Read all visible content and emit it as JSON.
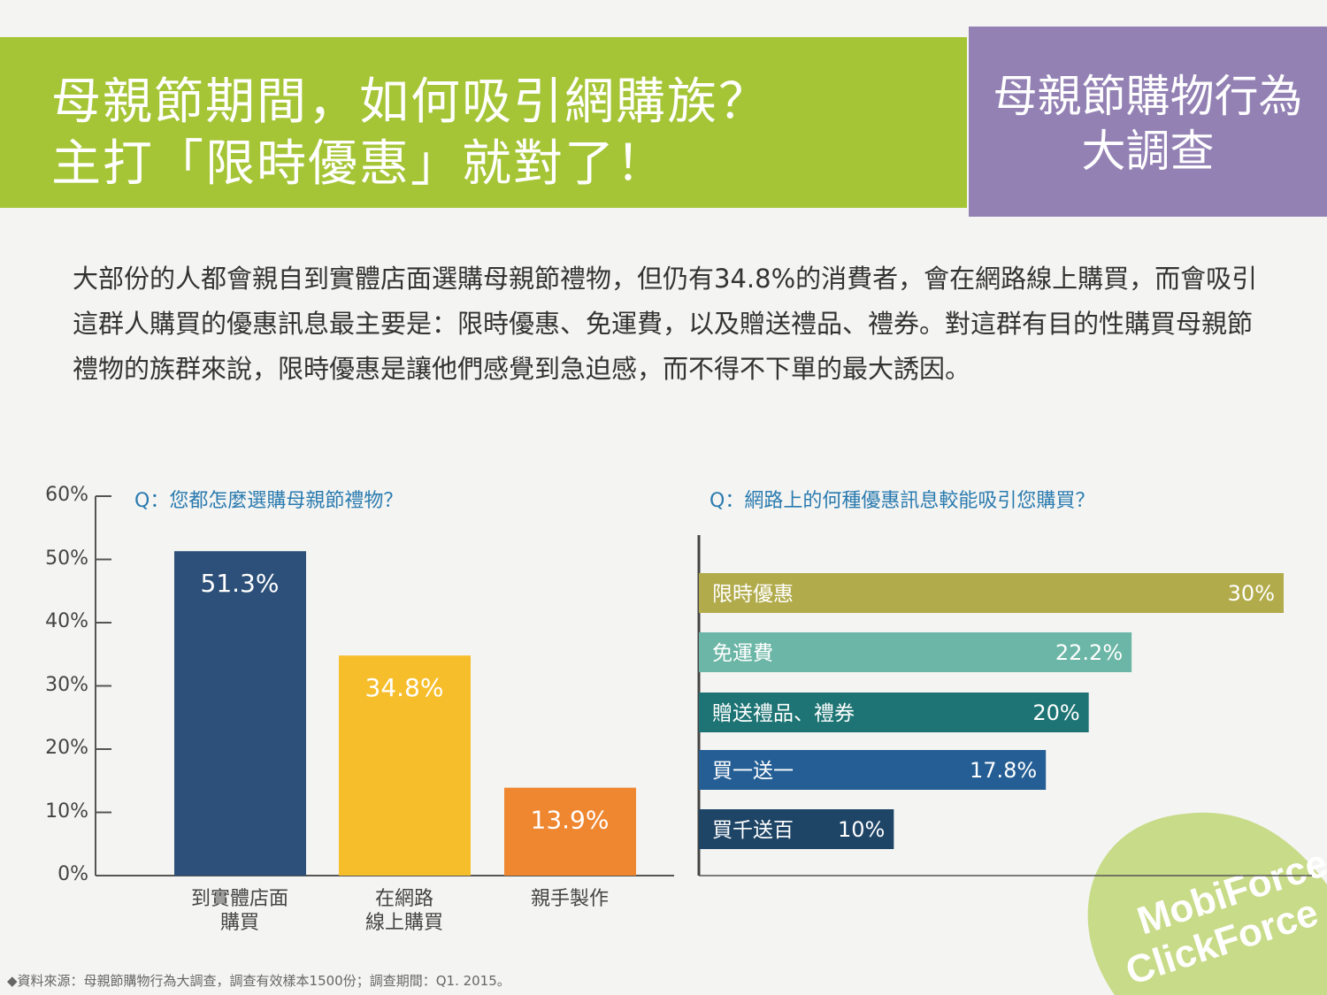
{
  "header": {
    "title_line1": "母親節期間，如何吸引網購族？",
    "title_line2": "主打「限時優惠」就對了！",
    "badge_line1": "母親節購物行為",
    "badge_line2": "大調查"
  },
  "body_text": "大部份的人都會親自到實體店面選購母親節禮物，但仍有34.8%的消費者，會在網路線上購買，而會吸引這群人購買的優惠訊息最主要是：限時優惠、免運費，以及贈送禮品、禮券。對這群有目的性購買母親節禮物的族群來說，限時優惠是讓他們感覺到急迫感，而不得不下單的最大誘因。",
  "chart_data": [
    {
      "type": "bar",
      "title": "Q：您都怎麼選購母親節禮物？",
      "categories": [
        "到實體店面\n購買",
        "在網路\n線上購買",
        "親手製作"
      ],
      "values": [
        51.3,
        34.8,
        13.9
      ],
      "labels": [
        "51.3%",
        "34.8%",
        "13.9%"
      ],
      "colors": [
        "#2c5079",
        "#f7be2c",
        "#ef8630"
      ],
      "yticks": [
        "0%",
        "10%",
        "20%",
        "30%",
        "40%",
        "50%",
        "60%"
      ],
      "ylim": [
        0,
        60
      ]
    },
    {
      "type": "bar",
      "orientation": "horizontal",
      "title": "Q：網路上的何種優惠訊息較能吸引您購買？",
      "categories": [
        "限時優惠",
        "免運費",
        "贈送禮品、禮券",
        "買一送一",
        "買千送百"
      ],
      "values": [
        30,
        22.2,
        20,
        17.8,
        10
      ],
      "labels": [
        "30%",
        "22.2%",
        "20%",
        "17.8%",
        "10%"
      ],
      "colors": [
        "#b1ab4b",
        "#6bb6a6",
        "#1e7474",
        "#245e94",
        "#1e4466"
      ],
      "xlim": [
        0,
        30
      ]
    }
  ],
  "source": "◆資料來源：母親節購物行為大調查，調查有效樣本1500份；調查期間：Q1. 2015。",
  "logo": {
    "line1": "MobiForce",
    "line2": "ClickForce"
  }
}
